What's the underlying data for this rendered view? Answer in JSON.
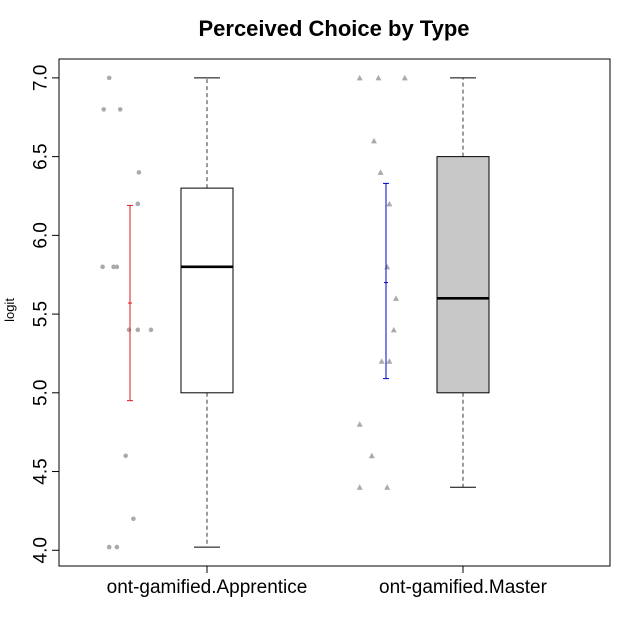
{
  "chart_data": {
    "type": "box",
    "title": "Perceived Choice by Type",
    "xlabel": "",
    "ylabel": "logit",
    "ylim": [
      3.9,
      7.12
    ],
    "yticks": [
      "4.0",
      "4.5",
      "5.0",
      "5.5",
      "6.0",
      "6.5",
      "7.0"
    ],
    "categories": [
      "ont-gamified.Apprentice",
      "ont-gamified.Master"
    ],
    "boxes": [
      {
        "category": "ont-gamified.Apprentice",
        "fill": "#ffffff",
        "whisker_low": 4.02,
        "q1": 5.0,
        "median": 5.8,
        "q3": 6.3,
        "whisker_high": 7.0,
        "mean": 5.57,
        "ci_low": 4.95,
        "ci_high": 6.19,
        "ci_color": "#e31a1c",
        "point_shape": "circle",
        "points": [
          [
            -0.9,
            7.0
          ],
          [
            -1.15,
            6.8
          ],
          [
            -0.4,
            6.8
          ],
          [
            0.45,
            6.4
          ],
          [
            0.4,
            6.2
          ],
          [
            -1.2,
            5.8
          ],
          [
            -0.55,
            5.8
          ],
          [
            -0.7,
            5.8
          ],
          [
            0.0,
            5.4
          ],
          [
            0.4,
            5.4
          ],
          [
            1.0,
            5.4
          ],
          [
            -0.15,
            4.6
          ],
          [
            0.2,
            4.2
          ],
          [
            -0.9,
            4.02
          ],
          [
            -0.55,
            4.02
          ]
        ]
      },
      {
        "category": "ont-gamified.Master",
        "fill": "#c8c8c8",
        "whisker_low": 4.4,
        "q1": 5.0,
        "median": 5.6,
        "q3": 6.5,
        "whisker_high": 7.0,
        "mean": 5.7,
        "ci_low": 5.09,
        "ci_high": 6.33,
        "ci_color": "#0000cc",
        "point_shape": "triangle",
        "points": [
          [
            -1.15,
            7.0
          ],
          [
            -0.3,
            7.0
          ],
          [
            0.9,
            7.0
          ],
          [
            -0.5,
            6.6
          ],
          [
            -0.2,
            6.4
          ],
          [
            0.2,
            6.2
          ],
          [
            0.1,
            5.8
          ],
          [
            0.5,
            5.6
          ],
          [
            0.4,
            5.4
          ],
          [
            -0.15,
            5.2
          ],
          [
            0.2,
            5.2
          ],
          [
            -1.15,
            4.8
          ],
          [
            -0.6,
            4.6
          ],
          [
            -1.15,
            4.4
          ],
          [
            0.1,
            4.4
          ]
        ]
      }
    ],
    "colors": {
      "points": "#aaaaaa",
      "box_border": "#000000",
      "whisker": "#666666"
    }
  }
}
